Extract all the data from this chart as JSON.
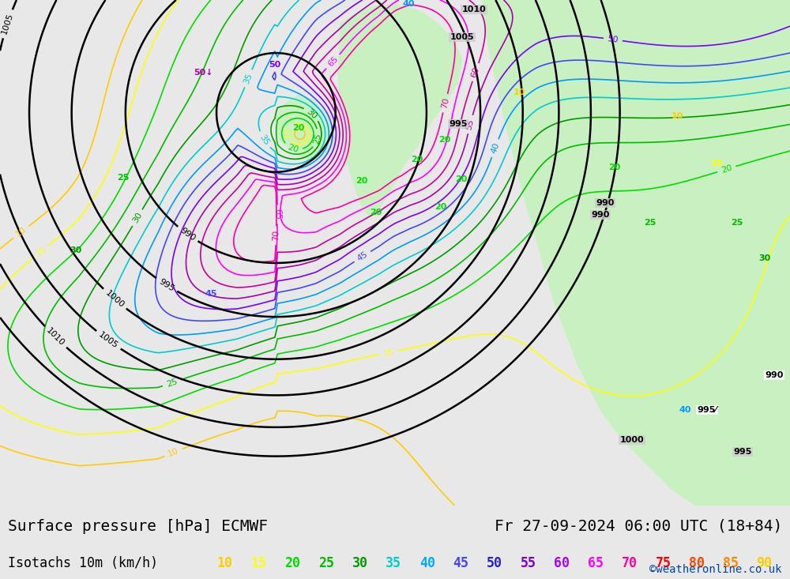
{
  "title_left": "Surface pressure [hPa] ECMWF",
  "title_right": "Fr 27-09-2024 06:00 UTC (18+84)",
  "legend_label": "Isotachs 10m (km/h)",
  "watermark": "©weatheronline.co.uk",
  "legend_values": [
    10,
    15,
    20,
    25,
    30,
    35,
    40,
    45,
    50,
    55,
    60,
    65,
    70,
    75,
    80,
    85,
    90
  ],
  "legend_colors": [
    "#ffcc00",
    "#ffff00",
    "#00dd00",
    "#00bb00",
    "#009900",
    "#00cccc",
    "#00aaff",
    "#4444ff",
    "#2222cc",
    "#7700cc",
    "#aa00ff",
    "#ff00ff",
    "#ff0099",
    "#ff0000",
    "#ff4400",
    "#ff8800",
    "#ffcc00"
  ],
  "sea_color": "#cccccc",
  "land_color_low": "#c8f0c0",
  "land_color_high": "#a0e080",
  "footer_color": "#e8e8e8",
  "title_fontsize": 14,
  "legend_fontsize": 12,
  "watermark_fontsize": 10,
  "fig_width": 10.0,
  "fig_height": 7.33,
  "dpi": 100
}
